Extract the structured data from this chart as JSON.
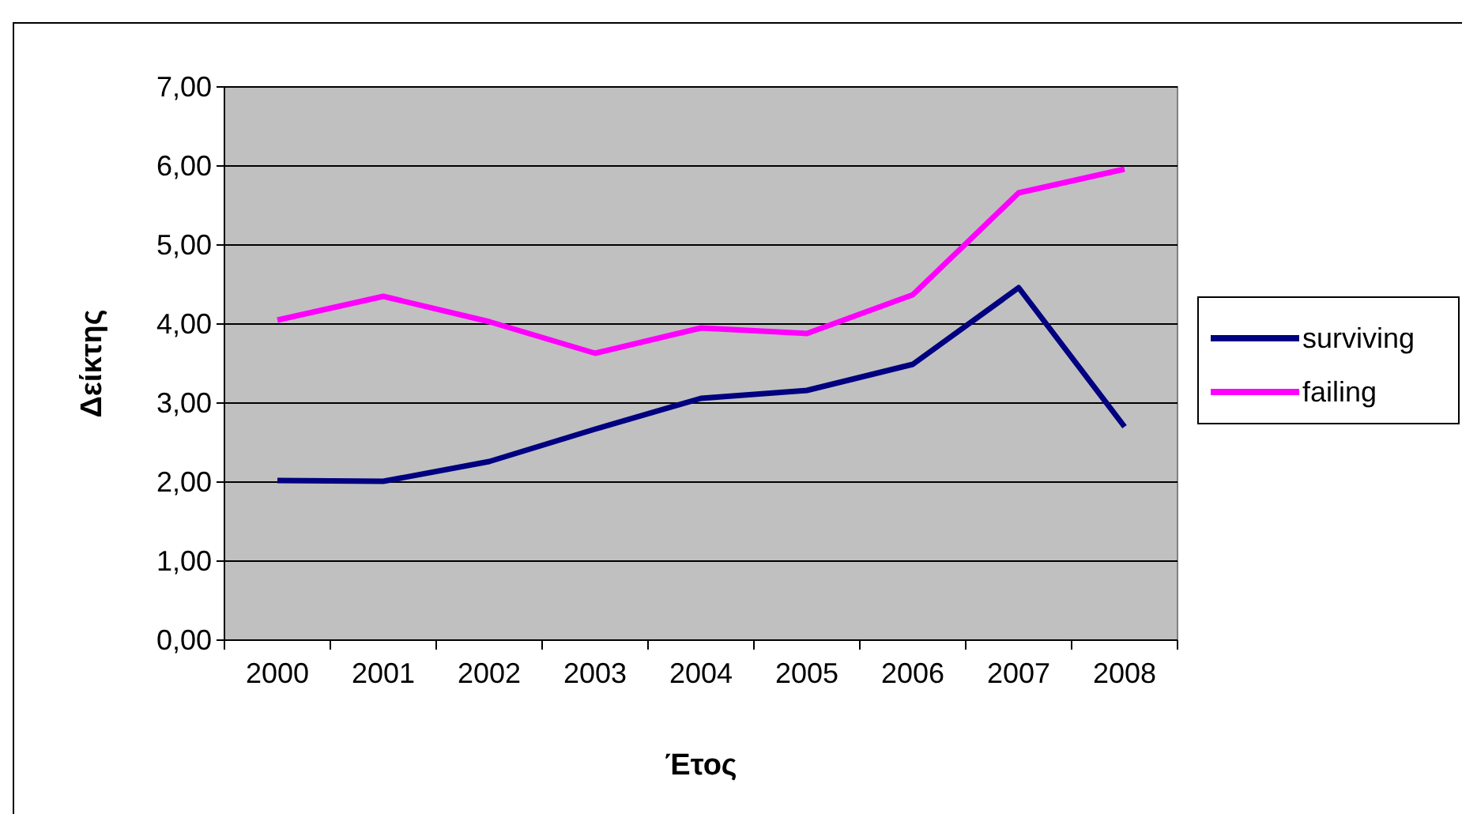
{
  "chart_data": {
    "type": "line",
    "xlabel": "Έτος",
    "ylabel": "Δείκτης",
    "categories": [
      "2000",
      "2001",
      "2002",
      "2003",
      "2004",
      "2005",
      "2006",
      "2007",
      "2008"
    ],
    "series": [
      {
        "name": "surviving",
        "color": "#000080",
        "values": [
          2.02,
          2.01,
          2.26,
          2.67,
          3.06,
          3.16,
          3.49,
          4.46,
          2.7
        ]
      },
      {
        "name": "failing",
        "color": "#ff00ff",
        "values": [
          4.05,
          4.35,
          4.03,
          3.63,
          3.95,
          3.88,
          4.37,
          5.66,
          5.96
        ]
      }
    ],
    "ylim": [
      0,
      7
    ],
    "yticks": [
      {
        "value": 0,
        "label": "0,00"
      },
      {
        "value": 1,
        "label": "1,00"
      },
      {
        "value": 2,
        "label": "2,00"
      },
      {
        "value": 3,
        "label": "3,00"
      },
      {
        "value": 4,
        "label": "4,00"
      },
      {
        "value": 5,
        "label": "5,00"
      },
      {
        "value": 6,
        "label": "6,00"
      },
      {
        "value": 7,
        "label": "7,00"
      }
    ],
    "grid": "y",
    "legend": "right",
    "marker": "none",
    "line_style": "solid"
  }
}
